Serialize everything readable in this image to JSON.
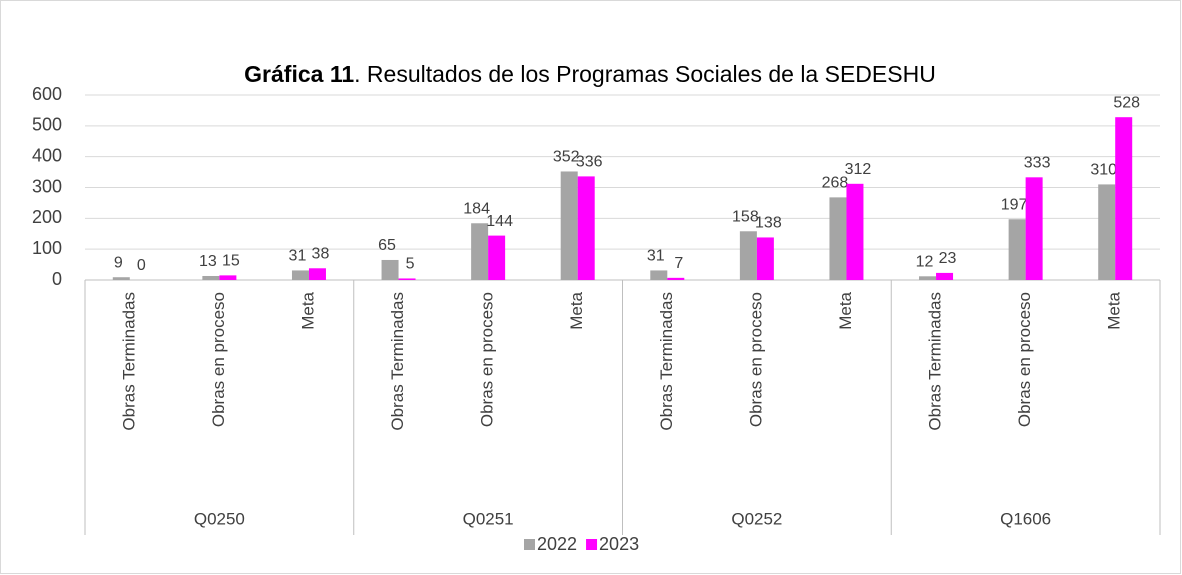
{
  "chart_data": {
    "type": "bar",
    "title": [
      "Gráfica 11",
      ". Resultados de los Programas Sociales de la SEDESHU"
    ],
    "groups": [
      {
        "name": "Q0250",
        "categories": [
          "Obras Terminadas",
          "Obras en proceso",
          "Meta"
        ]
      },
      {
        "name": "Q0251",
        "categories": [
          "Obras Terminadas",
          "Obras en proceso",
          "Meta"
        ]
      },
      {
        "name": "Q0252",
        "categories": [
          "Obras Terminadas",
          "Obras en proceso",
          "Meta"
        ]
      },
      {
        "name": "Q1606",
        "categories": [
          "Obras Terminadas",
          "Obras en proceso",
          "Meta"
        ]
      }
    ],
    "series": [
      {
        "name": "2022",
        "color": "#a5a5a5",
        "values": [
          9,
          13,
          31,
          65,
          184,
          352,
          31,
          158,
          268,
          12,
          197,
          310
        ]
      },
      {
        "name": "2023",
        "color": "#ff00ff",
        "values": [
          0,
          15,
          38,
          5,
          144,
          336,
          7,
          138,
          312,
          23,
          333,
          528
        ]
      }
    ],
    "ylim": [
      0,
      600
    ],
    "yticks": [
      0,
      100,
      200,
      300,
      400,
      500,
      600
    ],
    "grid": true,
    "legend": "bottom"
  }
}
